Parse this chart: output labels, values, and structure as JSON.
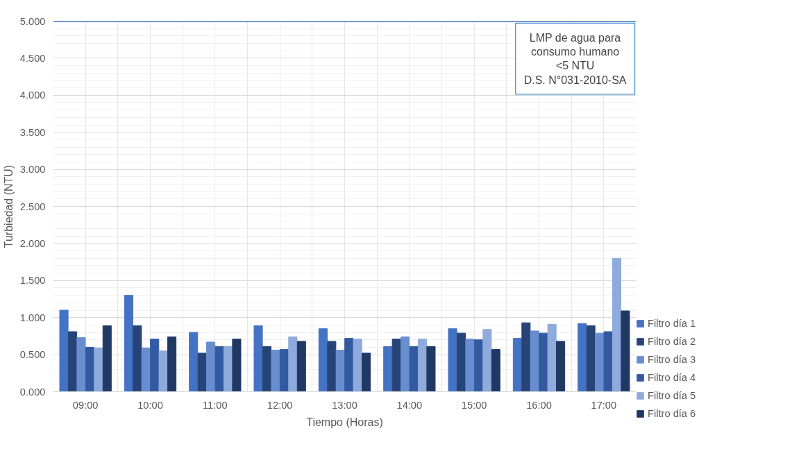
{
  "chart_data": {
    "type": "bar",
    "xlabel": "Tiempo (Horas)",
    "ylabel": "Turbiedad (NTU)",
    "categories": [
      "09:00",
      "10:00",
      "11:00",
      "12:00",
      "13:00",
      "14:00",
      "15:00",
      "16:00",
      "17:00"
    ],
    "series": [
      {
        "name": "Filtro día 1",
        "color": "#4472c4",
        "values": [
          1.1,
          1.3,
          0.8,
          0.89,
          0.85,
          0.61,
          0.85,
          0.72,
          0.92
        ]
      },
      {
        "name": "Filtro día 2",
        "color": "#264478",
        "values": [
          0.81,
          0.89,
          0.52,
          0.61,
          0.68,
          0.71,
          0.79,
          0.93,
          0.89
        ]
      },
      {
        "name": "Filtro día 3",
        "color": "#698ed0",
        "values": [
          0.73,
          0.59,
          0.67,
          0.56,
          0.56,
          0.74,
          0.71,
          0.82,
          0.79
        ]
      },
      {
        "name": "Filtro día 4",
        "color": "#335aa1",
        "values": [
          0.6,
          0.71,
          0.61,
          0.57,
          0.72,
          0.61,
          0.7,
          0.79,
          0.81
        ]
      },
      {
        "name": "Filtro día 5",
        "color": "#8faadc",
        "values": [
          0.59,
          0.55,
          0.61,
          0.74,
          0.71,
          0.71,
          0.84,
          0.91,
          1.8
        ]
      },
      {
        "name": "Filtro día 6",
        "color": "#203864",
        "values": [
          0.89,
          0.74,
          0.71,
          0.68,
          0.52,
          0.61,
          0.57,
          0.68,
          1.09
        ]
      }
    ],
    "ylim": [
      0,
      5
    ],
    "yticks": [
      {
        "value": 0,
        "label": "0.000"
      },
      {
        "value": 0.5,
        "label": "0.500"
      },
      {
        "value": 1,
        "label": "1.000"
      },
      {
        "value": 1.5,
        "label": "1.500"
      },
      {
        "value": 2,
        "label": "2.000"
      },
      {
        "value": 2.5,
        "label": "2.500"
      },
      {
        "value": 3,
        "label": "3.000"
      },
      {
        "value": 3.5,
        "label": "3.500"
      },
      {
        "value": 4,
        "label": "4.000"
      },
      {
        "value": 4.5,
        "label": "4.500"
      },
      {
        "value": 5,
        "label": "5.000"
      }
    ],
    "ref_lines": [
      {
        "axis": "y",
        "value": 5,
        "label": "LMP de agua para\nconsumo humano\n<5 NTU\nD.S. N°031-2010-SA",
        "color": "#4472c4"
      }
    ],
    "grid": true,
    "legend": "right"
  }
}
